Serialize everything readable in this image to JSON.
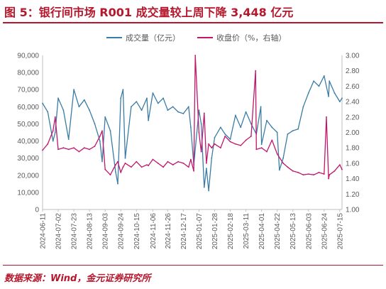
{
  "title": "图 5：银行间市场 R001 成交量较上周下降 3,448 亿元",
  "source": "数据来源：Wind，金元证券研究所",
  "colors": {
    "title": "#b5172c",
    "volume": "#3a7ca5",
    "close": "#c0176c",
    "axis": "#595959"
  },
  "chart_data": {
    "type": "line",
    "legend": {
      "placement": "top",
      "entries": [
        "成交量（亿元）",
        "收盘价（%，右轴）"
      ]
    },
    "x_tick_labels": [
      "2024-06-11",
      "2024-07-02",
      "2024-07-23",
      "2024-08-13",
      "2024-09-03",
      "2024-09-24",
      "2024-10-15",
      "2024-11-06",
      "2024-11-26",
      "2024-12-17",
      "2025-01-07",
      "2025-01-28",
      "2025-02-18",
      "2025-03-11",
      "2025-04-01",
      "2025-04-22",
      "2025-05-13",
      "2025-06-03",
      "2025-06-24",
      "2025-07-15"
    ],
    "y_left": {
      "min": 0,
      "max": 90000,
      "step": 10000,
      "tick_labels": [
        "0",
        "10,000",
        "20,000",
        "30,000",
        "40,000",
        "50,000",
        "60,000",
        "70,000",
        "80,000",
        "90,000"
      ]
    },
    "y_right": {
      "min": 1.0,
      "max": 3.0,
      "step": 0.2,
      "tick_labels": [
        "1.00",
        "1.20",
        "1.40",
        "1.60",
        "1.80",
        "2.00",
        "2.20",
        "2.40",
        "2.60",
        "2.80",
        "3.00"
      ]
    },
    "grid": false,
    "x_range": [
      "2024-06-11",
      "2025-07-18"
    ],
    "series": [
      {
        "name": "成交量（亿元）",
        "axis": "left",
        "x": [
          "2024-06-11",
          "2024-06-18",
          "2024-06-25",
          "2024-06-28",
          "2024-07-02",
          "2024-07-09",
          "2024-07-16",
          "2024-07-23",
          "2024-07-30",
          "2024-08-06",
          "2024-08-13",
          "2024-08-20",
          "2024-08-27",
          "2024-08-30",
          "2024-09-03",
          "2024-09-10",
          "2024-09-17",
          "2024-09-20",
          "2024-09-24",
          "2024-09-27",
          "2024-09-30",
          "2024-10-08",
          "2024-10-15",
          "2024-10-22",
          "2024-10-29",
          "2024-10-31",
          "2024-11-06",
          "2024-11-13",
          "2024-11-20",
          "2024-11-26",
          "2024-12-03",
          "2024-12-10",
          "2024-12-17",
          "2024-12-24",
          "2024-12-27",
          "2024-12-31",
          "2025-01-07",
          "2025-01-10",
          "2025-01-14",
          "2025-01-17",
          "2025-01-20",
          "2025-01-24",
          "2025-01-28",
          "2025-02-05",
          "2025-02-11",
          "2025-02-18",
          "2025-02-25",
          "2025-03-04",
          "2025-03-11",
          "2025-03-18",
          "2025-03-25",
          "2025-03-31",
          "2025-04-01",
          "2025-04-08",
          "2025-04-15",
          "2025-04-22",
          "2025-04-25",
          "2025-04-30",
          "2025-05-06",
          "2025-05-13",
          "2025-05-20",
          "2025-05-27",
          "2025-06-03",
          "2025-06-10",
          "2025-06-17",
          "2025-06-24",
          "2025-06-30",
          "2025-07-01",
          "2025-07-08",
          "2025-07-15",
          "2025-07-18"
        ],
        "values": [
          62000,
          57000,
          40000,
          45000,
          65000,
          58000,
          41000,
          70000,
          60000,
          64000,
          58000,
          50000,
          40000,
          28000,
          54000,
          46000,
          22000,
          15000,
          65000,
          70000,
          30000,
          60000,
          63000,
          58000,
          65000,
          52000,
          68000,
          62000,
          65000,
          58000,
          60000,
          57000,
          56000,
          60000,
          48000,
          26000,
          58000,
          50000,
          13000,
          24000,
          11000,
          30000,
          42000,
          48000,
          44000,
          41000,
          55000,
          48000,
          57000,
          50000,
          44000,
          60000,
          38000,
          52000,
          48000,
          45000,
          23000,
          30000,
          44000,
          46000,
          47000,
          60000,
          68000,
          75000,
          72000,
          78000,
          66000,
          75000,
          68000,
          63000,
          65000
        ]
      },
      {
        "name": "收盘价（%，右轴）",
        "axis": "right",
        "x": [
          "2024-06-11",
          "2024-06-18",
          "2024-06-25",
          "2024-06-28",
          "2024-07-02",
          "2024-07-09",
          "2024-07-16",
          "2024-07-23",
          "2024-07-30",
          "2024-08-06",
          "2024-08-13",
          "2024-08-20",
          "2024-08-27",
          "2024-08-30",
          "2024-09-03",
          "2024-09-10",
          "2024-09-17",
          "2024-09-20",
          "2024-09-24",
          "2024-09-27",
          "2024-09-30",
          "2024-10-08",
          "2024-10-15",
          "2024-10-22",
          "2024-10-29",
          "2024-10-31",
          "2024-11-06",
          "2024-11-13",
          "2024-11-20",
          "2024-11-26",
          "2024-12-03",
          "2024-12-10",
          "2024-12-17",
          "2024-12-24",
          "2024-12-27",
          "2024-12-31",
          "2025-01-02",
          "2025-01-07",
          "2025-01-10",
          "2025-01-14",
          "2025-01-17",
          "2025-01-20",
          "2025-01-24",
          "2025-01-28",
          "2025-02-05",
          "2025-02-11",
          "2025-02-18",
          "2025-02-25",
          "2025-03-04",
          "2025-03-11",
          "2025-03-18",
          "2025-03-24",
          "2025-03-25",
          "2025-04-01",
          "2025-04-08",
          "2025-04-15",
          "2025-04-22",
          "2025-04-30",
          "2025-05-06",
          "2025-05-13",
          "2025-05-20",
          "2025-05-27",
          "2025-06-03",
          "2025-06-10",
          "2025-06-17",
          "2025-06-24",
          "2025-06-27",
          "2025-06-30",
          "2025-07-01",
          "2025-07-08",
          "2025-07-15",
          "2025-07-18"
        ],
        "values": [
          1.77,
          1.85,
          2.02,
          2.2,
          1.78,
          1.8,
          1.78,
          1.8,
          1.75,
          1.8,
          1.78,
          1.82,
          1.95,
          2.02,
          1.52,
          1.45,
          1.58,
          1.62,
          1.48,
          1.55,
          1.6,
          1.55,
          1.62,
          1.55,
          1.58,
          1.57,
          1.65,
          1.6,
          1.55,
          1.62,
          1.58,
          1.62,
          1.6,
          1.55,
          1.65,
          1.5,
          3.0,
          2.0,
          1.75,
          2.25,
          1.6,
          1.85,
          1.8,
          1.85,
          1.8,
          1.95,
          1.88,
          1.85,
          1.83,
          1.9,
          1.95,
          2.8,
          1.78,
          1.8,
          1.75,
          1.9,
          1.72,
          1.6,
          1.55,
          1.5,
          1.48,
          1.45,
          1.46,
          1.45,
          1.48,
          1.46,
          2.2,
          1.4,
          1.45,
          1.5,
          1.58,
          1.52
        ]
      }
    ]
  }
}
